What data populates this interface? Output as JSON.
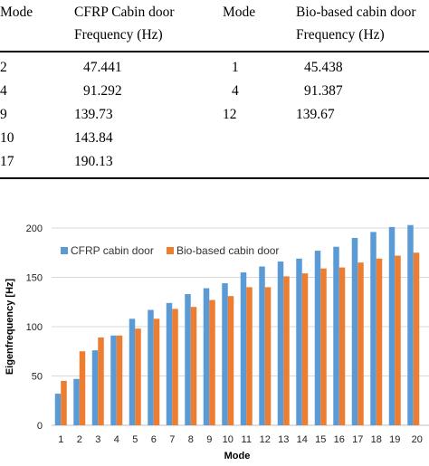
{
  "table": {
    "headers": [
      [
        "Mode"
      ],
      [
        "CFRP Cabin door",
        "Frequency (Hz)"
      ],
      [
        "Mode"
      ],
      [
        "Bio-based cabin door",
        "Frequency (Hz)"
      ]
    ],
    "rows": [
      [
        "2",
        "47.441",
        "1",
        "45.438"
      ],
      [
        "4",
        "91.292",
        "4",
        "91.387"
      ],
      [
        "9",
        "139.73",
        "12",
        "139.67"
      ],
      [
        "10",
        "143.84",
        "",
        ""
      ],
      [
        "17",
        "190.13",
        "",
        ""
      ]
    ]
  },
  "chart_data": {
    "type": "bar",
    "categories": [
      "1",
      "2",
      "3",
      "4",
      "5",
      "6",
      "7",
      "8",
      "9",
      "10",
      "11",
      "12",
      "13",
      "14",
      "15",
      "16",
      "17",
      "18",
      "19",
      "20"
    ],
    "category_tick_labels": [
      "1",
      "2",
      "3",
      "4",
      "5",
      "6",
      "7",
      "8",
      "9",
      "10",
      "11",
      "12",
      "13",
      "14",
      "15",
      "16",
      "17",
      "18",
      "19",
      "20"
    ],
    "series": [
      {
        "name": "CFRP cabin door",
        "color": "#5B9BD5",
        "values": [
          32,
          47,
          76,
          91,
          108,
          117,
          124,
          133,
          139,
          144,
          155,
          161,
          166,
          169,
          177,
          181,
          190,
          196,
          201,
          203
        ]
      },
      {
        "name": "Bio-based cabin door",
        "color": "#ED7D31",
        "values": [
          45,
          75,
          89,
          91,
          98,
          108,
          118,
          120,
          127,
          131,
          140,
          140,
          151,
          154,
          159,
          160,
          165,
          169,
          172,
          175
        ]
      }
    ],
    "xlabel": "Mode",
    "ylabel": "Eigenfrequency [Hz]",
    "ylim": [
      0,
      200
    ],
    "yticks": [
      "0",
      "50",
      "100",
      "150",
      "200"
    ],
    "grid": true,
    "legend_position": "top-left"
  }
}
